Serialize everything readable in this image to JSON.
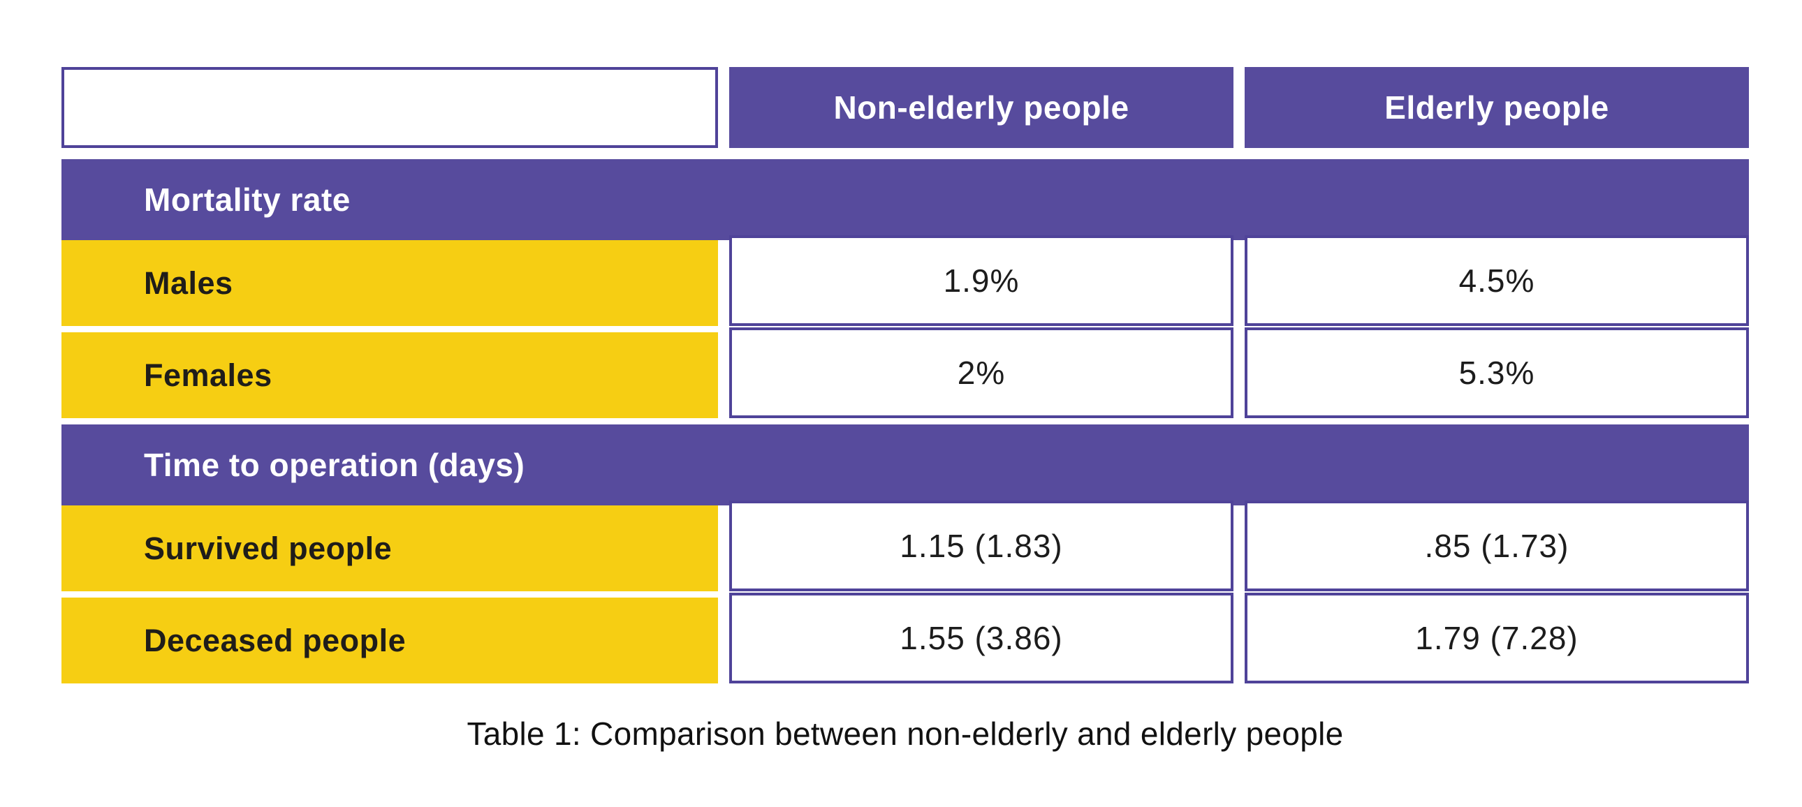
{
  "caption": "Table 1: Comparison between non-elderly and elderly people",
  "colors": {
    "purple": "#574b9d",
    "purple_border": "#4f4399",
    "yellow": "#f6ce13",
    "label_text": "#1f1d1a",
    "value_text": "#1c1c1c",
    "header_text": "#ffffff",
    "background": "#ffffff"
  },
  "table": {
    "columns": [
      "",
      "Non-elderly people",
      "Elderly people"
    ],
    "sections": [
      {
        "header": "Mortality rate",
        "rows": [
          {
            "label": "Males",
            "values": [
              "1.9%",
              "4.5%"
            ]
          },
          {
            "label": "Females",
            "values": [
              "2%",
              "5.3%"
            ]
          }
        ]
      },
      {
        "header": "Time to operation (days)",
        "rows": [
          {
            "label": "Survived people",
            "values": [
              "1.15 (1.83)",
              ".85 (1.73)"
            ]
          },
          {
            "label": "Deceased people",
            "values": [
              "1.55 (3.86)",
              "1.79 (7.28)"
            ]
          }
        ]
      }
    ]
  },
  "chart_data": {
    "type": "table",
    "title": "Table 1: Comparison between non-elderly and elderly people",
    "columns": [
      "",
      "Non-elderly people",
      "Elderly people"
    ],
    "sections": [
      {
        "section": "Mortality rate",
        "rows": [
          {
            "label": "Males",
            "non_elderly": "1.9%",
            "elderly": "4.5%"
          },
          {
            "label": "Females",
            "non_elderly": "2%",
            "elderly": "5.3%"
          }
        ]
      },
      {
        "section": "Time to operation (days)",
        "rows": [
          {
            "label": "Survived people",
            "non_elderly": "1.15 (1.83)",
            "elderly": ".85 (1.73)"
          },
          {
            "label": "Deceased people",
            "non_elderly": "1.55 (3.86)",
            "elderly": "1.79 (7.28)"
          }
        ]
      }
    ]
  }
}
